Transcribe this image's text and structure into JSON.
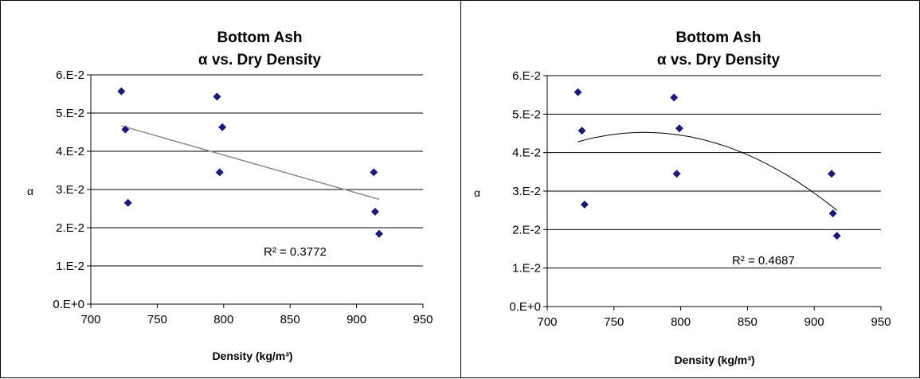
{
  "chart_data": [
    {
      "type": "scatter",
      "title": "Bottom Ash",
      "subtitle": "α vs. Dry Density",
      "xlabel": "Density (kg/m³)",
      "ylabel": "α",
      "xlim": [
        700,
        950
      ],
      "ylim": [
        0,
        0.06
      ],
      "xticks": [
        "700",
        "750",
        "800",
        "850",
        "900",
        "950"
      ],
      "yticks": [
        "0.E+0",
        "1.E-2",
        "2.E-2",
        "3.E-2",
        "4.E-2",
        "5.E-2",
        "6.E-2"
      ],
      "grid": "horizontal",
      "marker_color": "#1a1a7a",
      "trendline_color": "#8c8c8c",
      "trendline": "linear",
      "r2_label": "R² = 0.3772",
      "points": [
        {
          "x": 723,
          "y": 0.0557
        },
        {
          "x": 726,
          "y": 0.0457
        },
        {
          "x": 728,
          "y": 0.0265
        },
        {
          "x": 795,
          "y": 0.0543
        },
        {
          "x": 799,
          "y": 0.0463
        },
        {
          "x": 797,
          "y": 0.0345
        },
        {
          "x": 913,
          "y": 0.0345
        },
        {
          "x": 914,
          "y": 0.0242
        },
        {
          "x": 917,
          "y": 0.0184
        }
      ]
    },
    {
      "type": "scatter",
      "title": "Bottom Ash",
      "subtitle": "α vs. Dry Density",
      "xlabel": "Density (kg/m³)",
      "ylabel": "α",
      "xlim": [
        700,
        950
      ],
      "ylim": [
        0,
        0.06
      ],
      "xticks": [
        "700",
        "750",
        "800",
        "850",
        "900",
        "950"
      ],
      "yticks": [
        "0.E+0",
        "1.E-2",
        "2.E-2",
        "3.E-2",
        "4.E-2",
        "5.E-2",
        "6.E-2"
      ],
      "grid": "horizontal",
      "marker_color": "#1a1a7a",
      "trendline_color": "#000000",
      "trendline": "polynomial",
      "r2_label": "R² = 0.4687",
      "points": [
        {
          "x": 723,
          "y": 0.0557
        },
        {
          "x": 726,
          "y": 0.0457
        },
        {
          "x": 728,
          "y": 0.0265
        },
        {
          "x": 795,
          "y": 0.0543
        },
        {
          "x": 799,
          "y": 0.0463
        },
        {
          "x": 797,
          "y": 0.0345
        },
        {
          "x": 913,
          "y": 0.0345
        },
        {
          "x": 914,
          "y": 0.0242
        },
        {
          "x": 917,
          "y": 0.0184
        }
      ]
    }
  ]
}
